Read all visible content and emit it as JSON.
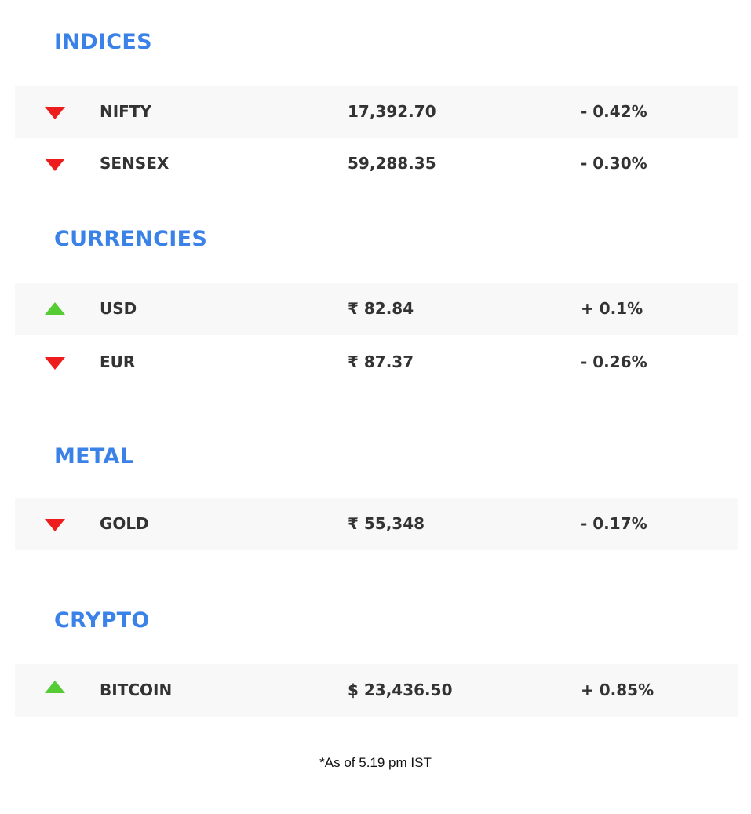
{
  "sections": [
    {
      "title": "INDICES",
      "rows": [
        {
          "name": "NIFTY",
          "value": "17,392.70",
          "change": "- 0.42%",
          "direction": "down"
        },
        {
          "name": "SENSEX",
          "value": "59,288.35",
          "change": "- 0.30%",
          "direction": "down"
        }
      ]
    },
    {
      "title": "CURRENCIES",
      "rows": [
        {
          "name": "USD",
          "value": "₹ 82.84",
          "change": "+ 0.1%",
          "direction": "up"
        },
        {
          "name": "EUR",
          "value": "₹ 87.37",
          "change": "- 0.26%",
          "direction": "down"
        }
      ]
    },
    {
      "title": "METAL",
      "rows": [
        {
          "name": "GOLD",
          "value": "₹ 55,348",
          "change": "- 0.17%",
          "direction": "down"
        }
      ]
    },
    {
      "title": "CRYPTO",
      "rows": [
        {
          "name": "BITCOIN",
          "value": "$ 23,436.50",
          "change": "+ 0.85%",
          "direction": "up"
        }
      ]
    }
  ],
  "footnote": "*As of 5.19 pm IST",
  "colors": {
    "heading": "#3b82e8",
    "down": "#ee1d1d",
    "up": "#55cc33",
    "row_shade": "#f8f8f8",
    "text": "#333333"
  },
  "icons": {
    "down": "triangle-down-icon",
    "up": "triangle-up-icon"
  }
}
